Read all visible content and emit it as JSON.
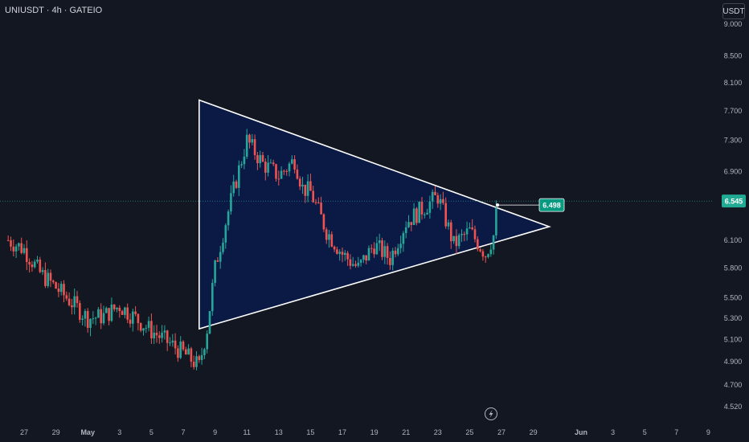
{
  "header": {
    "symbol": "UNIUSDT · 4h · GATEIO"
  },
  "currency_button": {
    "label": "USDT"
  },
  "colors": {
    "background": "#131722",
    "up": "#26a69a",
    "down": "#ef5350",
    "triangle_fill": "#0b1a45",
    "triangle_stroke": "#ffffff",
    "price_line": "#26a69a",
    "tag_bg": "#22ab94",
    "annotation_bg": "#089981"
  },
  "icons": {
    "flash": "lightning-bolt-icon"
  },
  "chart_data": {
    "type": "candlestick",
    "price_scale": "log",
    "y_axis_ticks": [
      "9.000",
      "8.500",
      "8.100",
      "7.700",
      "7.300",
      "6.900",
      "6.100",
      "5.800",
      "5.500",
      "5.300",
      "5.100",
      "4.900",
      "4.700",
      "4.520"
    ],
    "x_axis_ticks": [
      "27",
      "29",
      "May",
      "3",
      "5",
      "7",
      "9",
      "11",
      "13",
      "15",
      "17",
      "19",
      "21",
      "23",
      "25",
      "27",
      "29",
      "Jun",
      "3",
      "5",
      "7",
      "9"
    ],
    "x_dates": [
      "2024-04-27",
      "2024-04-29",
      "2024-05-01",
      "2024-05-03",
      "2024-05-05",
      "2024-05-07",
      "2024-05-09",
      "2024-05-11",
      "2024-05-13",
      "2024-05-15",
      "2024-05-17",
      "2024-05-19",
      "2024-05-21",
      "2024-05-23",
      "2024-05-25",
      "2024-05-27",
      "2024-05-29",
      "2024-06-01",
      "2024-06-03",
      "2024-06-05",
      "2024-06-07",
      "2024-06-09"
    ],
    "last_price": "6.545",
    "annotation_price": "6.498",
    "candle_waypoints": [
      {
        "date": "2024-04-26",
        "close": 6.1
      },
      {
        "date": "2024-04-27",
        "close": 6.0
      },
      {
        "date": "2024-04-28",
        "close": 5.75
      },
      {
        "date": "2024-04-29",
        "close": 5.6
      },
      {
        "date": "2024-04-30",
        "close": 5.45
      },
      {
        "date": "2024-05-01",
        "close": 5.3
      },
      {
        "date": "2024-05-02",
        "close": 5.32
      },
      {
        "date": "2024-05-03",
        "close": 5.42
      },
      {
        "date": "2024-05-04",
        "close": 5.3
      },
      {
        "date": "2024-05-05",
        "close": 5.18
      },
      {
        "date": "2024-05-06",
        "close": 5.08
      },
      {
        "date": "2024-05-07",
        "close": 4.98
      },
      {
        "date": "2024-05-08",
        "close": 4.86
      },
      {
        "date": "2024-05-08T12:00",
        "close": 5.2
      },
      {
        "date": "2024-05-09",
        "close": 5.8
      },
      {
        "date": "2024-05-10",
        "close": 6.55
      },
      {
        "date": "2024-05-11",
        "close": 7.3
      },
      {
        "date": "2024-05-12",
        "close": 7.0
      },
      {
        "date": "2024-05-13",
        "close": 6.85
      },
      {
        "date": "2024-05-14",
        "close": 7.05
      },
      {
        "date": "2024-05-14T12:00",
        "close": 6.7
      },
      {
        "date": "2024-05-15",
        "close": 6.65
      },
      {
        "date": "2024-05-16",
        "close": 6.2
      },
      {
        "date": "2024-05-17",
        "close": 5.95
      },
      {
        "date": "2024-05-18",
        "close": 5.8
      },
      {
        "date": "2024-05-19",
        "close": 6.05
      },
      {
        "date": "2024-05-20",
        "close": 5.9
      },
      {
        "date": "2024-05-21",
        "close": 6.3
      },
      {
        "date": "2024-05-22",
        "close": 6.45
      },
      {
        "date": "2024-05-23",
        "close": 6.6
      },
      {
        "date": "2024-05-24",
        "close": 6.05
      },
      {
        "date": "2024-05-25",
        "close": 6.2
      },
      {
        "date": "2024-05-26",
        "close": 5.95
      },
      {
        "date": "2024-05-26T12:00",
        "close": 6.15
      },
      {
        "date": "2024-05-26T18:00",
        "close": 6.5
      }
    ],
    "triangle": [
      {
        "date": "2024-05-08",
        "price": 7.85
      },
      {
        "date": "2024-05-30",
        "price": 6.25
      },
      {
        "date": "2024-05-08",
        "price": 5.2
      }
    ]
  }
}
